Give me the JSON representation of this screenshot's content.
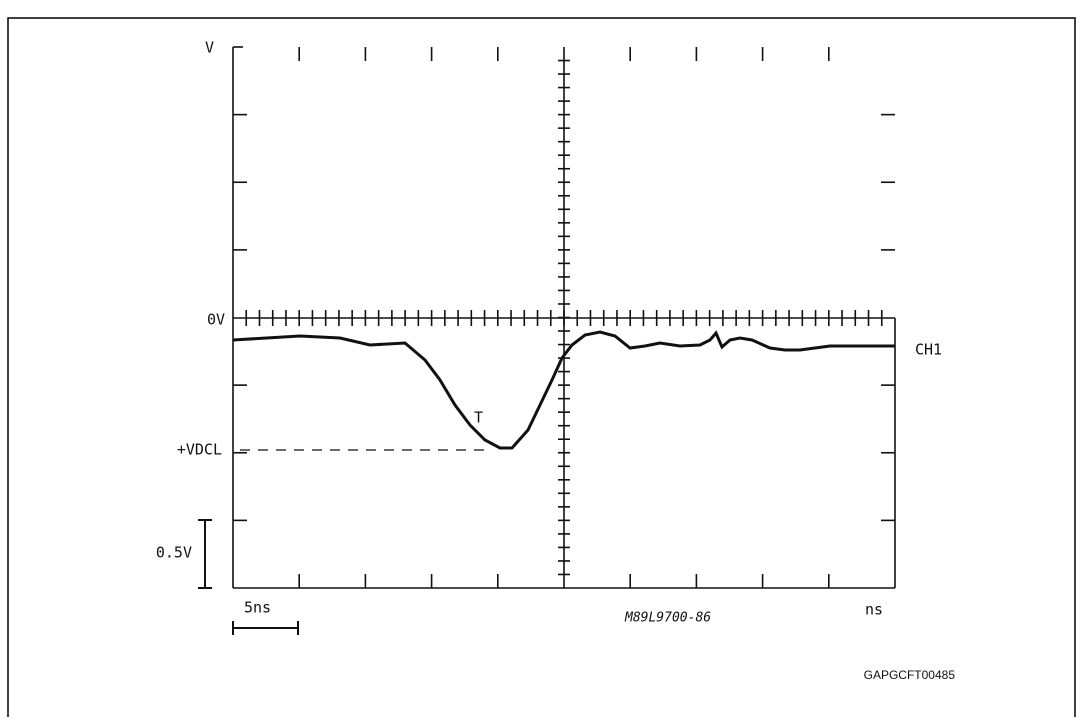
{
  "labels": {
    "v_unit": "V",
    "zero": "0V",
    "vdcl": "+VDCL",
    "volt_scale": "0.5V",
    "time_scale": "5ns",
    "ns_unit": "ns",
    "channel": "CH1",
    "marker": "T",
    "plot_code": "M89L9700-86",
    "figure_code": "GAPGCFT00485"
  }
}
